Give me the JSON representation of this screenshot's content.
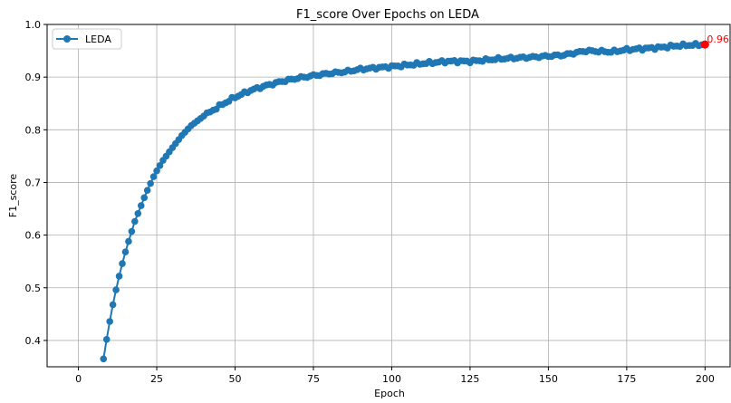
{
  "chart_data": {
    "type": "line",
    "title": "F1_score Over Epochs on LEDA",
    "xlabel": "Epoch",
    "ylabel": "F1_score",
    "xlim": [
      -10,
      208
    ],
    "ylim": [
      0.35,
      1.0
    ],
    "xticks": [
      0,
      25,
      50,
      75,
      100,
      125,
      150,
      175,
      200
    ],
    "yticks": [
      0.4,
      0.5,
      0.6,
      0.7,
      0.8,
      0.9,
      1.0
    ],
    "ytick_labels": [
      "0.4",
      "0.5",
      "0.6",
      "0.7",
      "0.8",
      "0.9",
      "1.0"
    ],
    "grid": true,
    "legend_position": "top-left",
    "series": [
      {
        "name": "LEDA",
        "color": "#1f77b4",
        "marker": "circle",
        "anchors": [
          [
            8,
            0.365
          ],
          [
            9,
            0.402
          ],
          [
            10,
            0.436
          ],
          [
            11,
            0.468
          ],
          [
            12,
            0.496
          ],
          [
            13,
            0.522
          ],
          [
            14,
            0.546
          ],
          [
            15,
            0.568
          ],
          [
            16,
            0.588
          ],
          [
            17,
            0.607
          ],
          [
            18,
            0.626
          ],
          [
            19,
            0.641
          ],
          [
            20,
            0.656
          ],
          [
            21,
            0.671
          ],
          [
            22,
            0.685
          ],
          [
            23,
            0.698
          ],
          [
            24,
            0.711
          ],
          [
            25,
            0.722
          ],
          [
            27,
            0.742
          ],
          [
            30,
            0.766
          ],
          [
            33,
            0.789
          ],
          [
            36,
            0.808
          ],
          [
            40,
            0.826
          ],
          [
            45,
            0.845
          ],
          [
            50,
            0.862
          ],
          [
            55,
            0.875
          ],
          [
            60,
            0.884
          ],
          [
            65,
            0.892
          ],
          [
            70,
            0.898
          ],
          [
            75,
            0.903
          ],
          [
            80,
            0.907
          ],
          [
            85,
            0.91
          ],
          [
            90,
            0.915
          ],
          [
            100,
            0.92
          ],
          [
            110,
            0.926
          ],
          [
            118,
            0.93
          ],
          [
            125,
            0.93
          ],
          [
            135,
            0.935
          ],
          [
            145,
            0.938
          ],
          [
            155,
            0.942
          ],
          [
            162,
            0.95
          ],
          [
            170,
            0.948
          ],
          [
            175,
            0.952
          ],
          [
            185,
            0.956
          ],
          [
            192,
            0.96
          ],
          [
            200,
            0.962
          ]
        ]
      }
    ],
    "annotation": {
      "x": 200,
      "y": 0.962,
      "text": "0.96",
      "color": "#ff0000"
    }
  }
}
